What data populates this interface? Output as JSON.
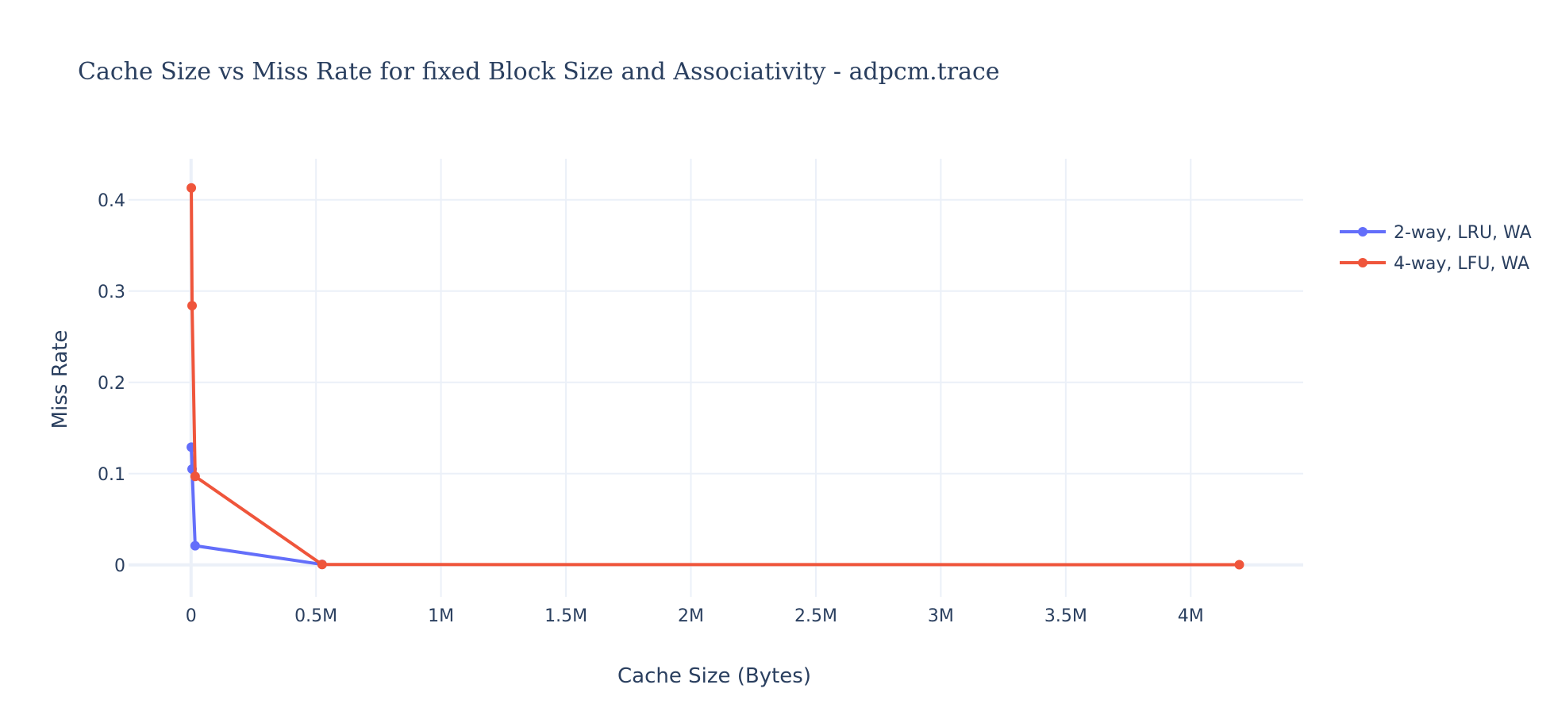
{
  "chart_data": {
    "type": "line",
    "title": "Cache Size vs Miss Rate for fixed Block Size and Associativity - adpcm.trace",
    "xlabel": "Cache Size (Bytes)",
    "ylabel": "Miss Rate",
    "xlim": [
      -250000,
      4450000
    ],
    "ylim": [
      -0.035,
      0.445
    ],
    "x_ticks": [
      {
        "value": 0,
        "label": "0"
      },
      {
        "value": 500000,
        "label": "0.5M"
      },
      {
        "value": 1000000,
        "label": "1M"
      },
      {
        "value": 1500000,
        "label": "1.5M"
      },
      {
        "value": 2000000,
        "label": "2M"
      },
      {
        "value": 2500000,
        "label": "2.5M"
      },
      {
        "value": 3000000,
        "label": "3M"
      },
      {
        "value": 3500000,
        "label": "3.5M"
      },
      {
        "value": 4000000,
        "label": "4M"
      }
    ],
    "y_ticks": [
      {
        "value": 0,
        "label": "0"
      },
      {
        "value": 0.1,
        "label": "0.1"
      },
      {
        "value": 0.2,
        "label": "0.2"
      },
      {
        "value": 0.3,
        "label": "0.3"
      },
      {
        "value": 0.4,
        "label": "0.4"
      }
    ],
    "grid": true,
    "legend_position": "top-right",
    "series": [
      {
        "name": "2-way, LRU, WA",
        "color": "#636efa",
        "x": [
          1024,
          4096,
          16384,
          524288
        ],
        "y": [
          0.129,
          0.105,
          0.021,
          0.0005
        ]
      },
      {
        "name": "4-way, LFU, WA",
        "color": "#ef553b",
        "x": [
          1024,
          4096,
          16384,
          524288,
          4194304
        ],
        "y": [
          0.413,
          0.284,
          0.097,
          0.0004,
          0.0002
        ]
      }
    ]
  }
}
